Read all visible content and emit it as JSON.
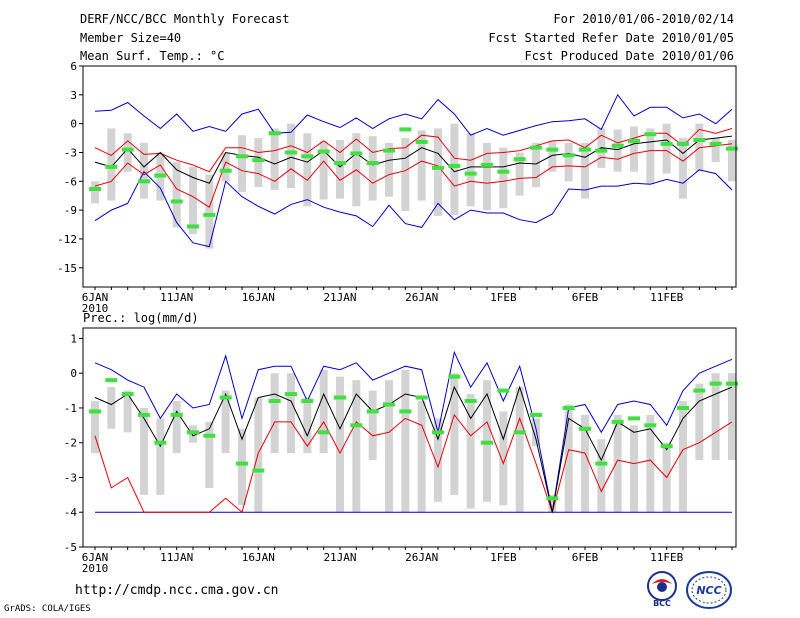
{
  "header": {
    "left": [
      "DERF/NCC/BCC Monthly Forecast",
      "Member Size=40",
      "Mean Surf. Temp.: °C"
    ],
    "right": [
      "For 2010/01/06-2010/02/14",
      "Fcst Started Refer Date 2010/01/05",
      "Fcst Produced Date 2010/01/06"
    ]
  },
  "footer": {
    "url": "http://cmdp.ncc.cma.gov.cn",
    "credit": "GrADS: COLA/IGES",
    "logo_bcc": "BCC",
    "logo_ncc": "NCC"
  },
  "colors": {
    "ensemble_mean": "#000000",
    "spread": "#e8000b",
    "extreme": "#0000cc",
    "box": "#d3d3d3",
    "median": "#40e040"
  },
  "chart_data": [
    {
      "type": "box",
      "title": "Mean Surf. Temp.: °C",
      "x": [
        "1/6",
        "1/7",
        "1/8",
        "1/9",
        "1/10",
        "1/11",
        "1/12",
        "1/13",
        "1/14",
        "1/15",
        "1/16",
        "1/17",
        "1/18",
        "1/19",
        "1/20",
        "1/21",
        "1/22",
        "1/23",
        "1/24",
        "1/25",
        "1/26",
        "1/27",
        "1/28",
        "1/29",
        "1/30",
        "1/31",
        "2/1",
        "2/2",
        "2/3",
        "2/4",
        "2/5",
        "2/6",
        "2/7",
        "2/8",
        "2/9",
        "2/10",
        "2/11",
        "2/12",
        "2/13",
        "2/14"
      ],
      "xtick_labels": [
        "6JAN\n2010",
        "11JAN",
        "16JAN",
        "21JAN",
        "26JAN",
        "1FEB",
        "6FEB",
        "11FEB"
      ],
      "yticks": [
        6,
        3,
        0,
        -3,
        -6,
        -9,
        -12,
        -15
      ],
      "ylim": [
        -17,
        6
      ],
      "series": [
        {
          "name": "max",
          "values": [
            1.3,
            1.4,
            2.2,
            0.8,
            -0.5,
            1,
            -0.8,
            -0.3,
            -0.8,
            1,
            1.5,
            -1,
            -0.9,
            0.9,
            0.2,
            -0.4,
            0.6,
            -0.5,
            0.5,
            1,
            0.5,
            2.5,
            1,
            -1.2,
            -0.5,
            -1.2,
            -0.7,
            -0.2,
            0.2,
            0.3,
            0.5,
            -0.6,
            3,
            0.8,
            1.7,
            1.7,
            0.6,
            1,
            0,
            1.5
          ]
        },
        {
          "name": "upper",
          "values": [
            -2.5,
            -3.3,
            -1.8,
            -3.2,
            -3.1,
            -3.8,
            -4.3,
            -5,
            -2.5,
            -2.5,
            -3,
            -2.8,
            -2.3,
            -3,
            -1.8,
            -3,
            -1.6,
            -3,
            -2.6,
            -2.5,
            -1.2,
            -1.4,
            -3.6,
            -3.8,
            -3.1,
            -3,
            -2.8,
            -2.3,
            -1.8,
            -1.7,
            -2.5,
            -1.2,
            -2,
            -1.5,
            -1,
            -1,
            -2.3,
            -0.6,
            -1,
            -0.5
          ]
        },
        {
          "name": "mean",
          "values": [
            -4,
            -4.5,
            -2.6,
            -4.5,
            -3,
            -4.8,
            -5.6,
            -6.2,
            -3,
            -3.3,
            -3.5,
            -4.2,
            -3.5,
            -4,
            -2.8,
            -4.5,
            -3.1,
            -4.3,
            -3.8,
            -3.6,
            -2.5,
            -3.1,
            -5,
            -4.5,
            -4.5,
            -4.5,
            -4.1,
            -4.2,
            -3.3,
            -3.1,
            -3.5,
            -2.5,
            -2.7,
            -2.1,
            -1.9,
            -1.7,
            -3.1,
            -1.7,
            -1.5,
            -1.3
          ]
        },
        {
          "name": "lower",
          "values": [
            -6.5,
            -6,
            -4.1,
            -5.3,
            -4.3,
            -6.8,
            -7.6,
            -8.7,
            -4,
            -4.9,
            -5.2,
            -6,
            -4.7,
            -5.9,
            -3.9,
            -5.9,
            -4.8,
            -6.2,
            -5.3,
            -4.9,
            -3.9,
            -4.4,
            -6.5,
            -6,
            -6.2,
            -6,
            -5.7,
            -5.6,
            -4.5,
            -4.4,
            -4.5,
            -3.5,
            -3.7,
            -3.1,
            -2.8,
            -2.8,
            -3.9,
            -2.5,
            -2.3,
            -2.1
          ]
        },
        {
          "name": "min",
          "values": [
            -10.1,
            -9,
            -8.3,
            -5,
            -6.7,
            -10.3,
            -12.4,
            -12.8,
            -6,
            -7.6,
            -8.6,
            -9.4,
            -8.4,
            -7.9,
            -8.7,
            -9.2,
            -9.6,
            -10.7,
            -8.5,
            -10.4,
            -10.8,
            -8.3,
            -10,
            -9,
            -9.3,
            -9.3,
            -10,
            -10.3,
            -9.4,
            -6.8,
            -6.9,
            -6.5,
            -6.5,
            -6.2,
            -6.3,
            -5.8,
            -6.2,
            -4.8,
            -5.2,
            -6.9
          ]
        },
        {
          "name": "box_top",
          "values": [
            -6,
            -0.5,
            -1,
            -2,
            -3,
            -4,
            -4.5,
            -5.3,
            -3,
            -1.2,
            -1.5,
            -0.5,
            0,
            -1,
            -1.8,
            -1.7,
            -1,
            -1.3,
            -2,
            -1.5,
            -0.7,
            -0.5,
            0,
            -1,
            -2,
            -2.5,
            -3,
            -2,
            -1.8,
            -2,
            -2,
            -0.5,
            -0.6,
            -0.3,
            -0.5,
            0,
            -1.5,
            0,
            -1.5,
            -1.7
          ]
        },
        {
          "name": "box_bottom",
          "values": [
            -8.3,
            -8,
            -5,
            -7.8,
            -8,
            -10.8,
            -11.5,
            -13,
            -6,
            -7.1,
            -6.6,
            -6.9,
            -6.7,
            -8.6,
            -7.9,
            -7.8,
            -8.6,
            -8,
            -7.6,
            -9.1,
            -8,
            -9.6,
            -9.5,
            -8.6,
            -9,
            -8.8,
            -7.5,
            -6.6,
            -5,
            -6,
            -7.8,
            -4.6,
            -5,
            -5,
            -6.3,
            -5.2,
            -7.8,
            -5,
            -4,
            -6
          ]
        },
        {
          "name": "median",
          "values": [
            -6.8,
            -4.5,
            -2.7,
            -6,
            -5.4,
            -8.1,
            -10.7,
            -9.5,
            -4.9,
            -3.4,
            -3.8,
            -1,
            -3,
            -3.4,
            -2.9,
            -4.1,
            -3.1,
            -4.1,
            -2.8,
            -0.6,
            -1.9,
            -4.6,
            -4.4,
            -5.2,
            -4.3,
            -5,
            -3.7,
            -2.5,
            -2.7,
            -3.3,
            -2.7,
            -2.8,
            -2.3,
            -1.8,
            -1.1,
            -2.1,
            -2.1,
            -1.7,
            -2.1,
            -2.6
          ]
        }
      ]
    },
    {
      "type": "box",
      "title": "Prec.: log(mm/d)",
      "x": [
        "1/6",
        "1/7",
        "1/8",
        "1/9",
        "1/10",
        "1/11",
        "1/12",
        "1/13",
        "1/14",
        "1/15",
        "1/16",
        "1/17",
        "1/18",
        "1/19",
        "1/20",
        "1/21",
        "1/22",
        "1/23",
        "1/24",
        "1/25",
        "1/26",
        "1/27",
        "1/28",
        "1/29",
        "1/30",
        "1/31",
        "2/1",
        "2/2",
        "2/3",
        "2/4",
        "2/5",
        "2/6",
        "2/7",
        "2/8",
        "2/9",
        "2/10",
        "2/11",
        "2/12",
        "2/13",
        "2/14"
      ],
      "xtick_labels": [
        "6JAN\n2010",
        "11JAN",
        "16JAN",
        "21JAN",
        "26JAN",
        "1FEB",
        "6FEB",
        "11FEB"
      ],
      "yticks": [
        1,
        0,
        -1,
        -2,
        -3,
        -4,
        -5
      ],
      "ylim": [
        -5,
        1.3
      ],
      "series": [
        {
          "name": "max",
          "values": [
            0.3,
            0.1,
            -0.2,
            -0.4,
            -1.3,
            -0.6,
            -1,
            -0.9,
            0.5,
            -1.3,
            0.1,
            0.2,
            0.2,
            -0.8,
            0.2,
            0.1,
            0.3,
            -0.2,
            0,
            0.2,
            0.1,
            -1.7,
            0.6,
            -0.4,
            0.3,
            -0.8,
            0.2,
            -1.6,
            -4,
            -1,
            -0.9,
            -1.7,
            -0.9,
            -0.8,
            -0.9,
            -1.5,
            -0.5,
            0,
            0.2,
            0.4
          ]
        },
        {
          "name": "mean",
          "values": [
            -0.7,
            -0.9,
            -0.6,
            -1.3,
            -2.1,
            -1.1,
            -1.8,
            -1.6,
            -0.6,
            -1.9,
            -0.7,
            -0.6,
            -0.8,
            -1.8,
            -0.6,
            -1.6,
            -0.6,
            -1.1,
            -0.9,
            -0.6,
            -0.7,
            -1.9,
            -0.4,
            -1.3,
            -0.6,
            -1.9,
            -0.4,
            -1.9,
            -4,
            -1.3,
            -1.6,
            -2.5,
            -1.4,
            -1.7,
            -1.6,
            -2.2,
            -1.3,
            -0.8,
            -0.6,
            -0.4
          ]
        },
        {
          "name": "lower",
          "values": [
            -1.8,
            -3.3,
            -3,
            -4,
            -4,
            -4,
            -4,
            -4,
            -3.6,
            -4,
            -2.3,
            -1.4,
            -1.4,
            -2.1,
            -1.4,
            -2.3,
            -1.4,
            -1.8,
            -1.7,
            -1.3,
            -1.5,
            -2.7,
            -1.2,
            -1.8,
            -1.4,
            -2.6,
            -1.3,
            -2.6,
            -4,
            -2.2,
            -2.3,
            -3.4,
            -2.5,
            -2.6,
            -2.5,
            -3,
            -2.2,
            -2,
            -1.7,
            -1.4
          ]
        },
        {
          "name": "min",
          "values": [
            -4,
            -4,
            -4,
            -4,
            -4,
            -4,
            -4,
            -4,
            -4,
            -4,
            -4,
            -4,
            -4,
            -4,
            -4,
            -4,
            -4,
            -4,
            -4,
            -4,
            -4,
            -4,
            -4,
            -4,
            -4,
            -4,
            -4,
            -4,
            -4,
            -4,
            -4,
            -4,
            -4,
            -4,
            -4,
            -4,
            -4,
            -4,
            -4,
            -4
          ]
        },
        {
          "name": "box_top",
          "values": [
            -0.8,
            -0.4,
            -0.5,
            -1,
            -1.3,
            -0.8,
            -1.5,
            -1.4,
            -0.5,
            -1.6,
            -0.7,
            0,
            0,
            -0.7,
            0.1,
            -0.1,
            -0.2,
            -0.5,
            -0.2,
            0.1,
            -0.8,
            -1.3,
            0,
            -0.6,
            -0.2,
            -1.1,
            -0.4,
            -1.3,
            -3.5,
            -0.9,
            -1.2,
            -1.9,
            -1.2,
            -1.5,
            -1.2,
            -2,
            -0.8,
            -0.3,
            0,
            0
          ]
        },
        {
          "name": "box_bottom",
          "values": [
            -2.3,
            -1.6,
            -1.7,
            -3.5,
            -3.5,
            -2.3,
            -2,
            -3.3,
            -2.3,
            -3.8,
            -4,
            -2.3,
            -2.3,
            -2.3,
            -2.3,
            -4,
            -4,
            -2.5,
            -4,
            -4,
            -4,
            -3.7,
            -3.5,
            -3.9,
            -3.7,
            -3.8,
            -4,
            -2.1,
            -4,
            -4,
            -4,
            -4,
            -4,
            -4,
            -4,
            -4,
            -4,
            -2.5,
            -2.5,
            -2.5
          ]
        },
        {
          "name": "median",
          "values": [
            -1.1,
            -0.2,
            -0.6,
            -1.2,
            -2,
            -1.2,
            -1.7,
            -1.8,
            -0.7,
            -2.6,
            -2.8,
            -0.8,
            -0.6,
            -0.8,
            -1.7,
            -0.7,
            -1.5,
            -1.1,
            -0.9,
            -1.1,
            -0.7,
            -1.7,
            -0.1,
            -0.8,
            -2,
            -0.5,
            -1.7,
            -1.2,
            -3.6,
            -1,
            -1.6,
            -2.6,
            -1.4,
            -1.3,
            -1.5,
            -2.1,
            -1,
            -0.5,
            -0.3,
            -0.3
          ]
        }
      ]
    }
  ]
}
